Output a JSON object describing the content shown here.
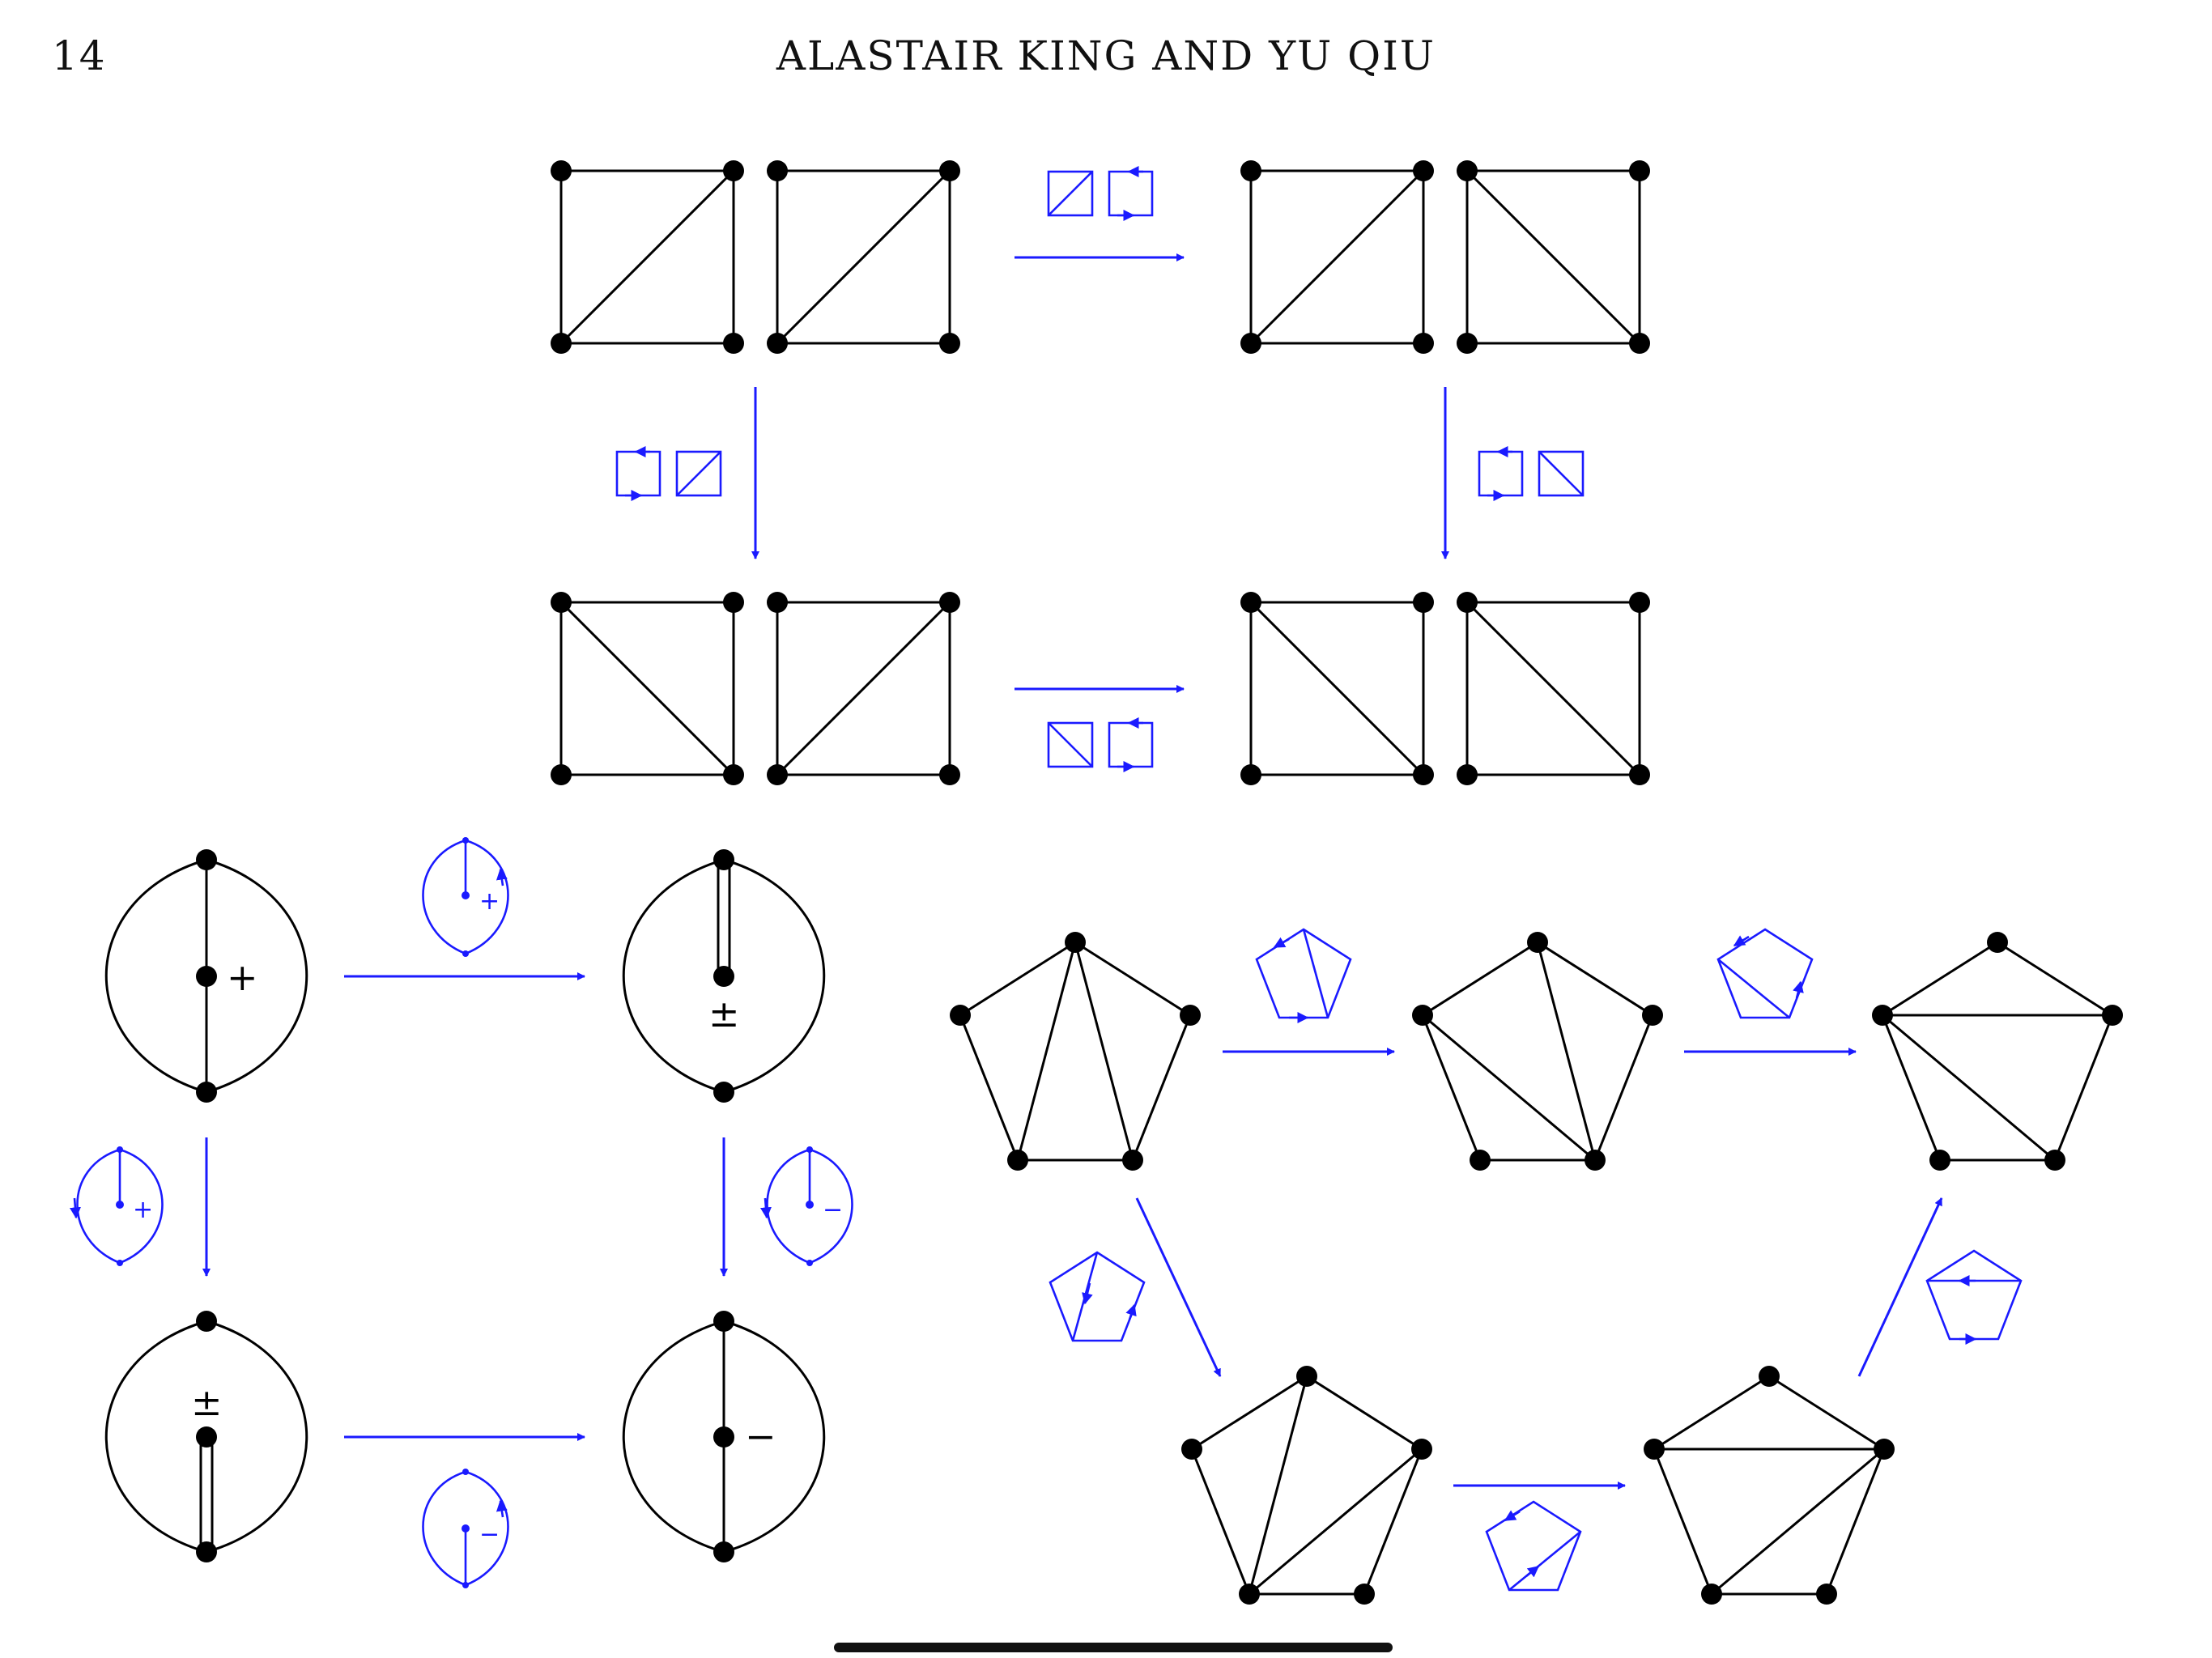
{
  "header": {
    "page_number": "14",
    "running_head": "ALASTAIR KING AND YU QIU"
  },
  "colors": {
    "graph": "#000000",
    "arrow": "#1a1aff",
    "indicator": "#111111"
  },
  "labels": {
    "plus": "+",
    "minus": "−",
    "plus_minus": "±"
  }
}
